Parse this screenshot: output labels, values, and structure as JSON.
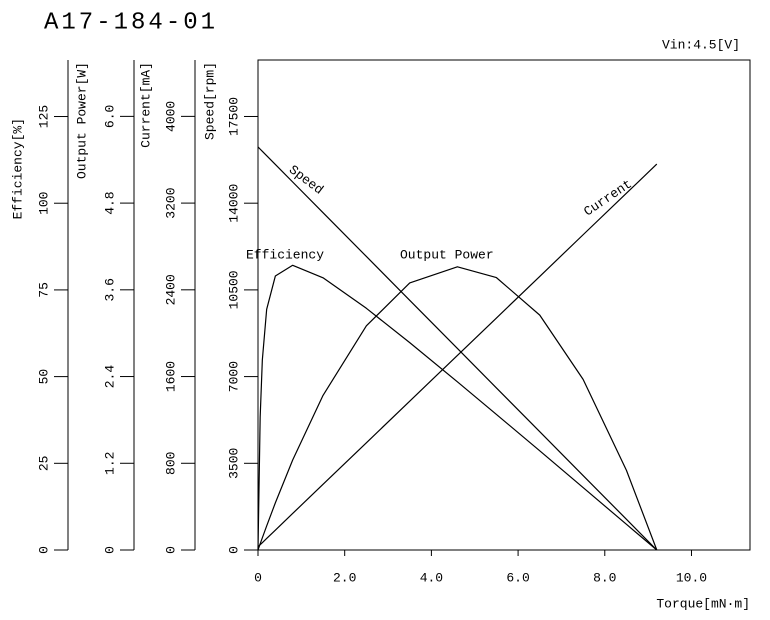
{
  "chart_data": {
    "type": "line",
    "title": "A17-184-01",
    "annotation": "Vin:4.5[V]",
    "xlabel": "Torque[mN·m]",
    "xlim": [
      0,
      11.35
    ],
    "xticks": [
      0,
      {
        "value": 2,
        "label": "2.0"
      },
      {
        "value": 4,
        "label": "4.0"
      },
      {
        "value": 6,
        "label": "6.0"
      },
      {
        "value": 8,
        "label": "8.0"
      },
      {
        "value": 10,
        "label": "10.0"
      }
    ],
    "x": [
      0,
      0.05,
      0.1,
      0.2,
      0.4,
      0.8,
      1.5,
      2.5,
      3.5,
      4.6,
      5.5,
      6.5,
      7.5,
      8.5,
      9.2
    ],
    "y_axes": [
      {
        "label": "Efficiency[%]",
        "ylim": [
          0,
          141.3
        ],
        "yticks": [
          0,
          25,
          50,
          75,
          100,
          125
        ],
        "series": [
          {
            "name": "Efficiency",
            "color": "#000000",
            "values": [
              0,
              38.3,
              54.8,
              69.4,
              79.0,
              82.1,
              78.5,
              69.7,
              59.8,
              48.5,
              39.1,
              28.6,
              18.0,
              7.4,
              0
            ]
          }
        ]
      },
      {
        "label": "Output Power[W]",
        "ylim": [
          0,
          6.78
        ],
        "yticks": [
          0,
          1.2,
          2.4,
          3.6,
          4.8,
          {
            "value": 6,
            "label": "6.0"
          }
        ],
        "series": [
          {
            "name": "Output Power",
            "color": "#000000",
            "values": [
              0,
              0.085,
              0.169,
              0.333,
              0.652,
              1.245,
              2.139,
              3.102,
              3.695,
              3.919,
              3.769,
              3.25,
              2.361,
              1.102,
              0
            ]
          }
        ]
      },
      {
        "label": "Current[mA]",
        "ylim": [
          0,
          4520
        ],
        "yticks": [
          0,
          800,
          1600,
          2400,
          3200,
          4000
        ],
        "series": [
          {
            "name": "Current",
            "color": "#000000",
            "values": [
              30,
              49,
              68,
              107,
              183,
              337,
              606,
              989,
              1373,
              1795,
              2140,
              2524,
              2908,
              3291,
              3560
            ]
          }
        ]
      },
      {
        "label": "Speed[rpm]",
        "ylim": [
          0,
          19780
        ],
        "yticks": [
          0,
          3500,
          7000,
          10500,
          14000,
          17500
        ],
        "series": [
          {
            "name": "Speed",
            "color": "#000000",
            "values": [
              16270,
              16182,
              16093,
              15916,
              15563,
              14855,
              13617,
              11849,
              10080,
              8135,
              6543,
              4775,
              3006,
              1238,
              0
            ]
          }
        ]
      }
    ]
  }
}
